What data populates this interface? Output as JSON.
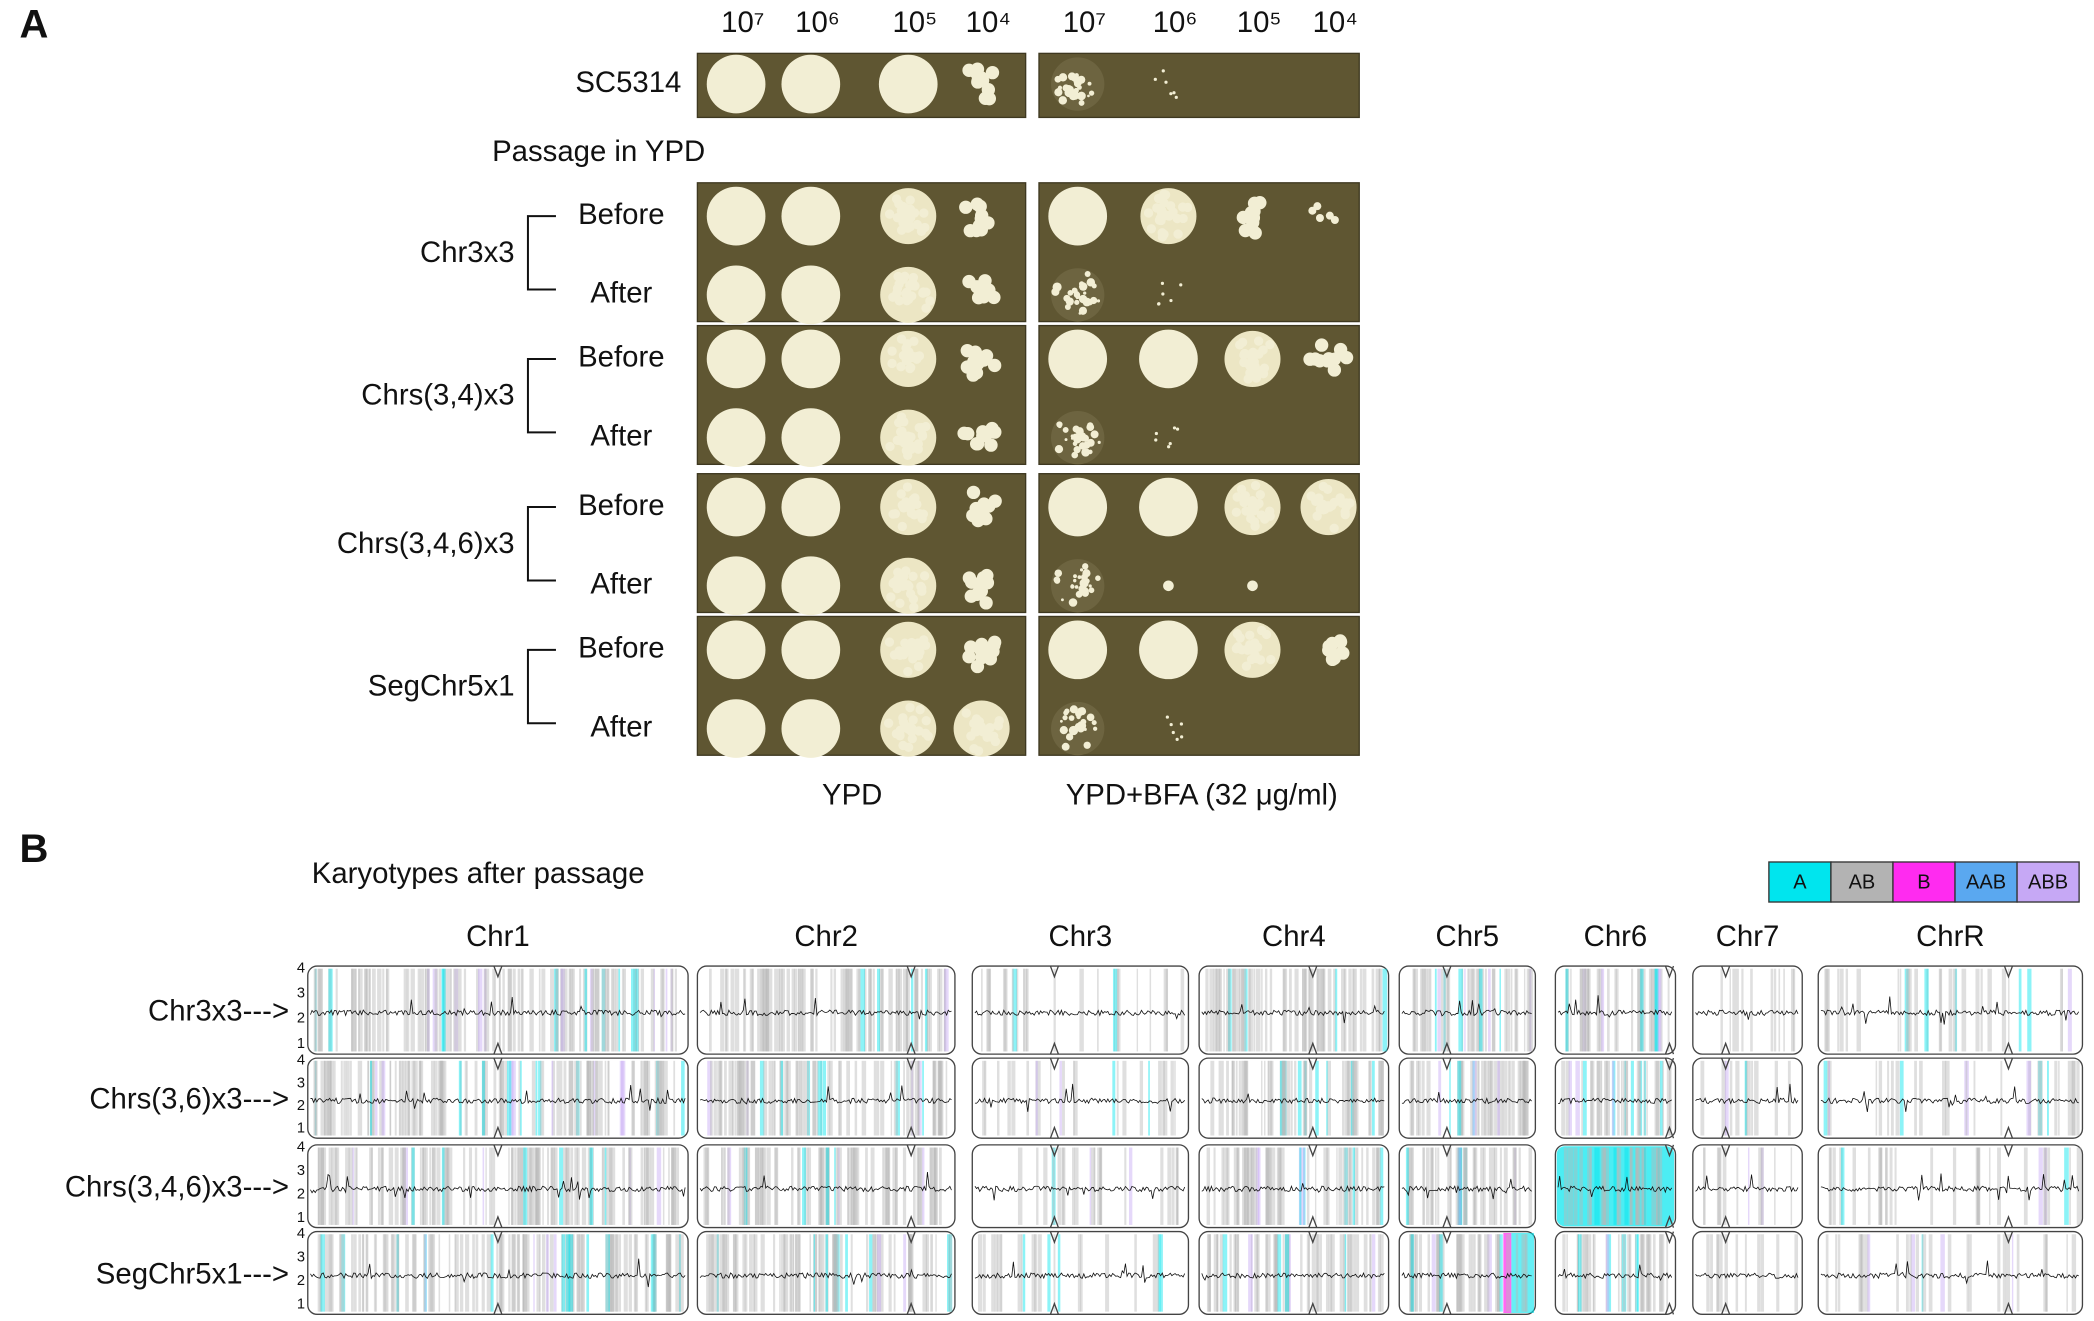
{
  "panel_a": {
    "label": "A",
    "dilutions": [
      "10⁷",
      "10⁶",
      "10⁵",
      "10⁴"
    ],
    "reference": "SC5314",
    "section_title": "Passage in YPD",
    "strains": [
      "Chr3x3",
      "Chrs(3,4)x3",
      "Chrs(3,4,6)x3",
      "SegChr5x1"
    ],
    "conditions": [
      "Before",
      "After"
    ],
    "media": [
      "YPD",
      "YPD+BFA (32 μg/ml)"
    ]
  },
  "panel_b": {
    "label": "B",
    "title": "Karyotypes after passage",
    "legend": [
      {
        "label": "A",
        "color": "#00e5ee"
      },
      {
        "label": "AB",
        "color": "#b3b3b3"
      },
      {
        "label": "B",
        "color": "#ff2bf0"
      },
      {
        "label": "AAB",
        "color": "#5aa8f0"
      },
      {
        "label": "ABB",
        "color": "#c6a8f5"
      }
    ],
    "chromosomes": [
      "Chr1",
      "Chr2",
      "Chr3",
      "Chr4",
      "Chr5",
      "Chr6",
      "Chr7",
      "ChrR"
    ],
    "strains": [
      "Chr3x3--->",
      "Chrs(3,6)x3--->",
      "Chrs(3,4,6)x3--->",
      "SegChr5x1--->"
    ],
    "copy_number_ticks": [
      4,
      3,
      2,
      1
    ]
  }
}
